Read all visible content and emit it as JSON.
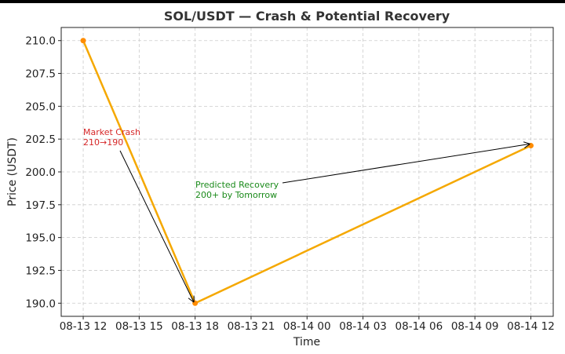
{
  "chart_data": {
    "type": "line",
    "title": "SOL/USDT — Crash & Potential Recovery",
    "xlabel": "Time",
    "ylabel": "Price (USDT)",
    "x": [
      "08-13 12:00",
      "08-13 18:00",
      "08-14 12:00"
    ],
    "series": [
      {
        "values": [
          210,
          190,
          202
        ],
        "color": "#f5a800",
        "marker_color": "#ff8c00"
      }
    ],
    "xticks": [
      "08-13 12",
      "08-13 15",
      "08-13 18",
      "08-13 21",
      "08-14 00",
      "08-14 03",
      "08-14 06",
      "08-14 09",
      "08-14 12"
    ],
    "yticks": [
      "190.0",
      "192.5",
      "195.0",
      "197.5",
      "200.0",
      "202.5",
      "205.0",
      "207.5",
      "210.0"
    ],
    "ylim": [
      189,
      211
    ],
    "grid": true,
    "annotations": [
      {
        "lines": [
          "Market Crash",
          "210→190"
        ],
        "target": "08-13 18:00",
        "target_value": 190,
        "color": "#d62728"
      },
      {
        "lines": [
          "Predicted Recovery",
          "200+ by Tomorrow"
        ],
        "target": "08-14 12:00",
        "target_value": 202,
        "color": "#1a8a1a"
      }
    ]
  }
}
